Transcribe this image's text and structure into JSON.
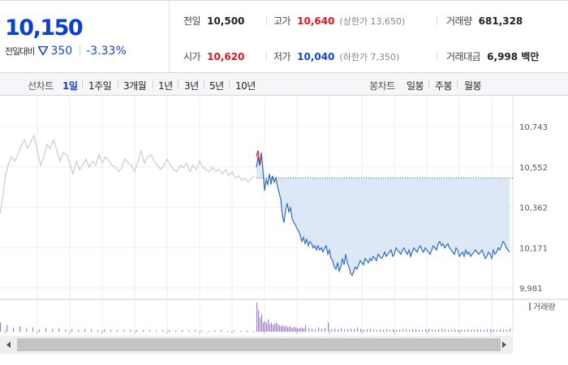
{
  "price": {
    "current": "10,150",
    "change_label": "전일대비",
    "change_icon": "down-triangle-icon",
    "change_amount": "350",
    "change_pct": "-3.33%",
    "down_color": "#1a44c8",
    "up_color": "#e0141e"
  },
  "stats": {
    "prev_close_label": "전일",
    "prev_close": "10,500",
    "open_label": "시가",
    "open": "10,620",
    "high_label": "고가",
    "high": "10,640",
    "upper_limit": "(상한가 13,650)",
    "low_label": "저가",
    "low": "10,040",
    "lower_limit": "(하한가 7,350)",
    "volume_label": "거래량",
    "volume": "681,328",
    "amount_label": "거래대금",
    "amount": "6,998 백만"
  },
  "tabs": {
    "line_label": "선차트",
    "line_items": [
      "1일",
      "1주일",
      "3개월",
      "1년",
      "3년",
      "5년",
      "10년"
    ],
    "active": "1일",
    "candle_label": "봉차트",
    "candle_items": [
      "일봉",
      "주봉",
      "월봉"
    ]
  },
  "chart_data": {
    "type": "line",
    "ylim": [
      9981,
      10743
    ],
    "y_ticks": [
      "10,743",
      "10,552",
      "10,362",
      "10,171",
      "9,981"
    ],
    "reference_line": 10500,
    "grid": true,
    "series": [
      {
        "x": [
          0,
          3,
          7,
          10,
          14,
          18,
          22,
          26,
          30,
          34,
          38,
          42,
          46,
          50,
          54,
          58,
          62,
          66,
          70,
          74,
          78,
          82,
          86,
          90,
          94,
          98,
          102,
          106,
          110,
          114,
          118,
          122,
          126,
          130,
          134,
          138,
          142,
          146,
          150,
          154,
          158,
          162,
          166,
          170,
          174,
          178,
          182,
          186,
          190,
          194,
          198,
          202,
          206,
          210,
          214,
          218,
          222,
          226,
          230,
          234,
          238,
          242,
          246,
          250,
          254,
          258,
          262,
          266,
          270,
          274,
          278,
          282,
          286,
          290,
          294,
          298,
          302,
          306,
          310,
          314
        ],
        "values": [
          10330,
          10400,
          10520,
          10560,
          10600,
          10580,
          10610,
          10650,
          10680,
          10640,
          10670,
          10700,
          10630,
          10560,
          10600,
          10660,
          10640,
          10680,
          10630,
          10580,
          10620,
          10610,
          10570,
          10520,
          10580,
          10540,
          10560,
          10590,
          10550,
          10580,
          10560,
          10610,
          10570,
          10600,
          10580,
          10560,
          10550,
          10530,
          10550,
          10590,
          10570,
          10560,
          10530,
          10580,
          10630,
          10570,
          10600,
          10610,
          10580,
          10560,
          10540,
          10560,
          10590,
          10560,
          10540,
          10530,
          10560,
          10550,
          10570,
          10530,
          10560,
          10540,
          10580,
          10550,
          10540,
          10530,
          10550,
          10530,
          10540,
          10520,
          10540,
          10510,
          10530,
          10500,
          10510,
          10490,
          10500,
          10480,
          10500,
          10510
        ],
        "color": "#cccccc"
      },
      {
        "x": [
          316,
          318,
          320,
          322,
          324,
          326,
          328,
          330,
          332,
          334,
          336,
          338,
          340,
          342,
          344,
          346,
          348,
          350,
          352,
          354,
          356,
          358,
          360,
          362,
          364,
          366,
          368,
          370,
          372,
          374,
          376,
          378,
          380,
          382,
          384,
          386,
          388,
          390,
          392,
          394,
          396,
          398,
          400,
          402,
          404,
          406,
          408,
          410,
          412,
          414,
          416,
          418,
          420,
          422,
          424,
          426,
          428,
          430,
          432,
          434,
          436,
          438,
          440,
          442,
          444,
          446,
          448,
          450,
          452,
          454,
          456,
          458,
          460,
          462,
          464,
          466,
          468,
          470,
          472,
          474,
          476,
          478,
          480,
          482,
          484,
          486,
          488,
          490,
          492,
          494,
          496,
          498,
          500,
          502,
          504,
          506,
          508,
          510,
          512,
          514,
          516,
          518,
          520,
          522,
          524,
          526,
          528,
          530,
          532,
          534,
          536,
          538,
          540,
          542,
          544,
          546,
          548,
          550,
          552,
          554,
          556,
          558,
          560,
          562,
          564,
          566,
          568,
          570,
          572,
          574,
          576,
          578,
          580,
          582,
          584,
          586,
          588,
          590,
          592,
          594,
          596,
          598,
          600,
          602,
          604,
          606,
          608,
          610,
          612,
          614,
          616,
          618,
          620,
          622,
          624,
          626,
          628
        ],
        "values": [
          10550,
          10600,
          10560,
          10620,
          10540,
          10440,
          10490,
          10470,
          10520,
          10470,
          10510,
          10480,
          10500,
          10460,
          10430,
          10400,
          10320,
          10290,
          10350,
          10380,
          10340,
          10360,
          10310,
          10290,
          10280,
          10260,
          10250,
          10230,
          10200,
          10220,
          10190,
          10210,
          10180,
          10200,
          10190,
          10170,
          10180,
          10160,
          10180,
          10160,
          10170,
          10150,
          10170,
          10180,
          10140,
          10160,
          10120,
          10110,
          10080,
          10070,
          10100,
          10060,
          10080,
          10120,
          10090,
          10140,
          10100,
          10080,
          10050,
          10040,
          10060,
          10080,
          10070,
          10090,
          10110,
          10100,
          10090,
          10120,
          10110,
          10100,
          10120,
          10110,
          10130,
          10120,
          10110,
          10140,
          10130,
          10120,
          10130,
          10150,
          10130,
          10140,
          10150,
          10160,
          10130,
          10140,
          10170,
          10160,
          10150,
          10140,
          10160,
          10170,
          10150,
          10140,
          10160,
          10130,
          10150,
          10170,
          10160,
          10150,
          10170,
          10180,
          10160,
          10150,
          10170,
          10160,
          10150,
          10140,
          10160,
          10180,
          10170,
          10160,
          10190,
          10200,
          10180,
          10190,
          10170,
          10180,
          10190,
          10170,
          10160,
          10150,
          10140,
          10170,
          10160,
          10130,
          10140,
          10150,
          10130,
          10160,
          10140,
          10150,
          10130,
          10140,
          10150,
          10160,
          10150,
          10140,
          10150,
          10160,
          10140,
          10120,
          10130,
          10150,
          10140,
          10120,
          10160,
          10140,
          10150,
          10170,
          10160,
          10180,
          10200,
          10190,
          10170,
          10160,
          10150
        ],
        "color": "#2c6cc8",
        "fill": "#dde8f7"
      },
      {
        "x": [
          316,
          318,
          320,
          322
        ],
        "values": [
          10600,
          10630,
          10560,
          10600
        ],
        "color": "#e0141e"
      }
    ],
    "volume": {
      "label": "거래량",
      "color": "#9b86b8",
      "x": [
        0,
        8,
        16,
        24,
        32,
        40,
        48,
        56,
        64,
        72,
        80,
        88,
        96,
        104,
        112,
        120,
        128,
        136,
        144,
        152,
        160,
        168,
        176,
        184,
        192,
        200,
        208,
        216,
        224,
        232,
        240,
        248,
        256,
        264,
        272,
        280,
        288,
        296,
        304,
        312,
        316,
        318,
        320,
        322,
        324,
        326,
        328,
        330,
        332,
        334,
        336,
        338,
        340,
        342,
        344,
        346,
        348,
        350,
        352,
        354,
        356,
        358,
        360,
        362,
        364,
        366,
        368,
        370,
        372,
        374,
        376,
        380,
        384,
        388,
        392,
        396,
        400,
        404,
        408,
        412,
        416,
        420,
        424,
        428,
        432,
        436,
        440,
        444,
        448,
        452,
        456,
        460,
        464,
        468,
        472,
        476,
        480,
        484,
        488,
        492,
        496,
        500,
        504,
        508,
        512,
        516,
        520,
        524,
        528,
        532,
        536,
        540,
        544,
        548,
        552,
        556,
        560,
        564,
        568,
        572,
        576,
        580,
        584,
        588,
        592,
        596,
        600,
        604,
        608,
        612,
        616,
        620,
        624,
        628
      ],
      "values": [
        30,
        22,
        14,
        18,
        10,
        14,
        8,
        12,
        9,
        10,
        7,
        8,
        6,
        9,
        7,
        6,
        8,
        6,
        5,
        6,
        7,
        5,
        6,
        5,
        4,
        5,
        6,
        4,
        5,
        4,
        5,
        4,
        3,
        4,
        5,
        3,
        4,
        3,
        4,
        3,
        95,
        70,
        45,
        55,
        30,
        35,
        28,
        40,
        25,
        30,
        22,
        26,
        30,
        24,
        20,
        18,
        22,
        16,
        20,
        14,
        18,
        15,
        12,
        16,
        14,
        12,
        10,
        14,
        12,
        10,
        22,
        12,
        10,
        8,
        14,
        10,
        12,
        30,
        9,
        10,
        8,
        12,
        7,
        9,
        10,
        8,
        14,
        9,
        7,
        8,
        10,
        7,
        6,
        8,
        7,
        9,
        6,
        8,
        7,
        6,
        8,
        7,
        6,
        9,
        8,
        7,
        6,
        8,
        10,
        7,
        6,
        8,
        9,
        7,
        6,
        7,
        8,
        6,
        7,
        6,
        8,
        7,
        6,
        8,
        7,
        6,
        9,
        8,
        7,
        6,
        8,
        7,
        6,
        10
      ]
    }
  }
}
